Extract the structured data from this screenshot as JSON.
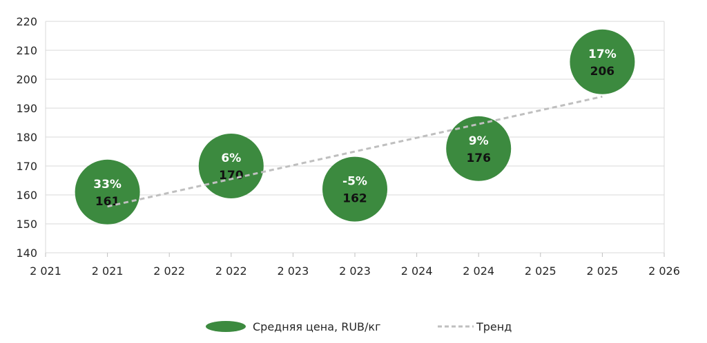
{
  "chart_data": {
    "type": "scatter",
    "x_ticks": [
      "2 021",
      "2 021",
      "2 022",
      "2 022",
      "2 023",
      "2 023",
      "2 024",
      "2 024",
      "2 025",
      "2 025",
      "2 026"
    ],
    "y_ticks": [
      "140",
      "150",
      "160",
      "170",
      "180",
      "190",
      "200",
      "210",
      "220"
    ],
    "xlim": [
      2021,
      2026
    ],
    "ylim": [
      140,
      220
    ],
    "grid": true,
    "series": [
      {
        "name": "Средняя цена, RUB/кг",
        "color": "#3c8a3f",
        "points": [
          {
            "x": 2021.5,
            "y": 161,
            "label": "161",
            "change": "33%"
          },
          {
            "x": 2022.5,
            "y": 170,
            "label": "170",
            "change": "6%"
          },
          {
            "x": 2023.5,
            "y": 162,
            "label": "162",
            "change": "-5%"
          },
          {
            "x": 2024.5,
            "y": 176,
            "label": "176",
            "change": "9%"
          },
          {
            "x": 2025.5,
            "y": 206,
            "label": "206",
            "change": "17%"
          }
        ]
      },
      {
        "name": "Тренд",
        "type": "line",
        "style": "dashed",
        "color": "#bfbfbf",
        "x": [
          2021.5,
          2025.5
        ],
        "y": [
          156,
          194
        ]
      }
    ],
    "legend_position": "bottom"
  }
}
